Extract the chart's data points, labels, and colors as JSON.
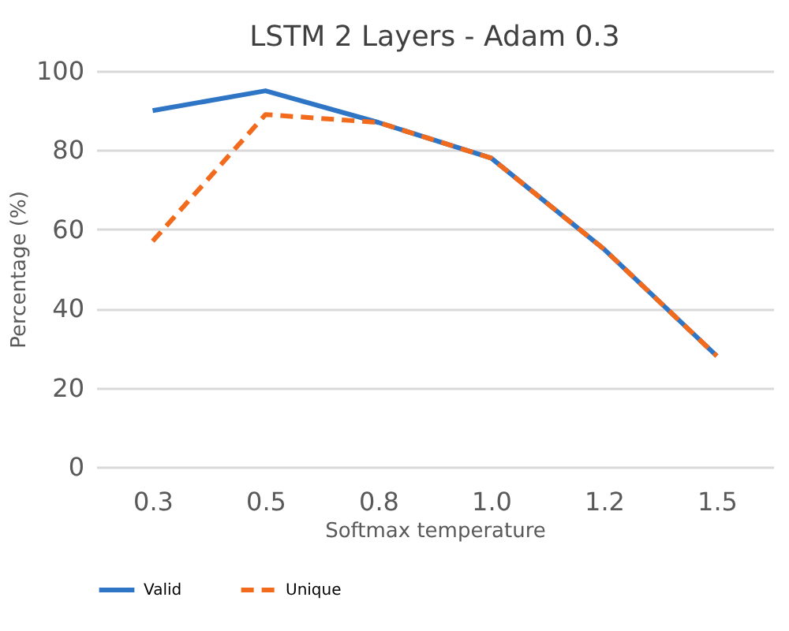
{
  "chart_data": {
    "type": "line",
    "title": "LSTM 2 Layers - Adam 0.3",
    "xlabel": "Softmax temperature",
    "ylabel": "Percentage (%)",
    "categories": [
      "0.3",
      "0.5",
      "0.8",
      "1.0",
      "1.2",
      "1.5"
    ],
    "series": [
      {
        "name": "Valid",
        "color": "#2e75c6",
        "line_style": "solid",
        "values": [
          90,
          95,
          87,
          78,
          55,
          28
        ]
      },
      {
        "name": "Unique",
        "color": "#f26b1d",
        "line_style": "dashed",
        "values": [
          57,
          89,
          87,
          78,
          55,
          28
        ]
      }
    ],
    "ylim": [
      0,
      100
    ],
    "yticks": [
      0,
      20,
      40,
      60,
      80,
      100
    ],
    "grid": "y",
    "legend": "bottom",
    "marker": "none"
  }
}
